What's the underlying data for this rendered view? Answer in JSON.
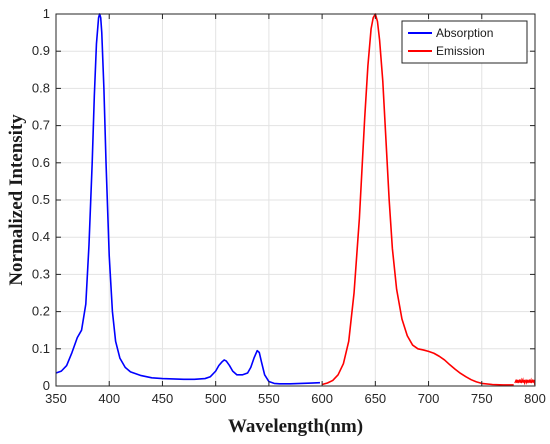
{
  "chart_data": {
    "type": "line",
    "title": "",
    "xlabel": "Wavelength(nm)",
    "ylabel": "Normalized Intensity",
    "xlim": [
      350,
      800
    ],
    "ylim": [
      0,
      1
    ],
    "xticks": [
      350,
      400,
      450,
      500,
      550,
      600,
      650,
      700,
      750,
      800
    ],
    "yticks": [
      0,
      0.1,
      0.2,
      0.3,
      0.4,
      0.5,
      0.6,
      0.7,
      0.8,
      0.9,
      1
    ],
    "xtick_labels": [
      "350",
      "400",
      "450",
      "500",
      "550",
      "600",
      "650",
      "700",
      "750",
      "800"
    ],
    "ytick_labels": [
      "0",
      "0.1",
      "0.2",
      "0.3",
      "0.4",
      "0.5",
      "0.6",
      "0.7",
      "0.8",
      "0.9",
      "1"
    ],
    "grid": true,
    "legend_position": "top-right",
    "series": [
      {
        "name": "Absorption",
        "color": "#0000ff",
        "x": [
          350,
          355,
          360,
          365,
          370,
          374,
          378,
          381,
          384,
          386,
          388,
          390,
          391,
          392,
          393,
          395,
          397,
          400,
          403,
          406,
          410,
          415,
          420,
          430,
          440,
          450,
          460,
          470,
          480,
          490,
          495,
          500,
          503,
          506,
          508,
          510,
          513,
          516,
          520,
          525,
          530,
          533,
          536,
          539,
          541,
          543,
          546,
          550,
          555,
          560,
          570,
          580,
          590,
          598
        ],
        "y": [
          0.035,
          0.04,
          0.055,
          0.09,
          0.13,
          0.15,
          0.22,
          0.38,
          0.6,
          0.78,
          0.92,
          0.99,
          1.0,
          0.99,
          0.95,
          0.8,
          0.6,
          0.35,
          0.2,
          0.12,
          0.075,
          0.05,
          0.038,
          0.028,
          0.022,
          0.02,
          0.019,
          0.018,
          0.018,
          0.02,
          0.025,
          0.04,
          0.055,
          0.065,
          0.07,
          0.067,
          0.055,
          0.04,
          0.03,
          0.03,
          0.035,
          0.05,
          0.075,
          0.095,
          0.09,
          0.065,
          0.03,
          0.012,
          0.007,
          0.006,
          0.006,
          0.007,
          0.008,
          0.009
        ]
      },
      {
        "name": "Emission",
        "color": "#ff0000",
        "x": [
          600,
          605,
          610,
          615,
          620,
          625,
          630,
          635,
          640,
          643,
          646,
          648,
          650,
          652,
          654,
          657,
          660,
          663,
          666,
          670,
          675,
          680,
          685,
          690,
          695,
          700,
          705,
          710,
          715,
          720,
          725,
          730,
          735,
          740,
          745,
          750,
          760,
          770,
          780
        ],
        "y": [
          0.004,
          0.008,
          0.015,
          0.03,
          0.06,
          0.12,
          0.25,
          0.45,
          0.72,
          0.86,
          0.96,
          0.99,
          1.0,
          0.98,
          0.93,
          0.82,
          0.66,
          0.5,
          0.37,
          0.26,
          0.18,
          0.135,
          0.11,
          0.1,
          0.097,
          0.093,
          0.088,
          0.08,
          0.07,
          0.057,
          0.045,
          0.034,
          0.025,
          0.017,
          0.011,
          0.007,
          0.004,
          0.003,
          0.003
        ]
      }
    ]
  }
}
